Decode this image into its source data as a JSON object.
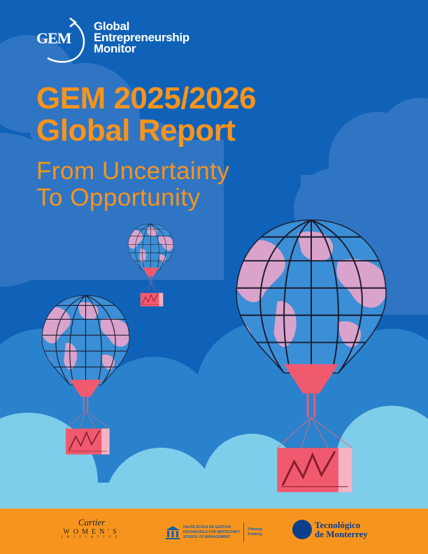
{
  "logo": {
    "mark": "GEM",
    "name_lines": [
      "Global",
      "Entrepreneurship",
      "Monitor"
    ]
  },
  "title": {
    "line1": "GEM 2025/2026",
    "line2": "Global Report"
  },
  "subtitle": {
    "line1": "From Uncertainty",
    "line2": "To Opportunity"
  },
  "colors": {
    "background": "#1062b8",
    "title": "#f7941d",
    "footer": "#f7941d",
    "balloon_ocean": "#3b8fd6",
    "balloon_land": "#d9a3cc",
    "basket": "#ef5a6e"
  },
  "footer": {
    "partners": [
      {
        "lines": [
          "Cartier",
          "WOMEN'S",
          "INITIATIVE"
        ]
      },
      {
        "lines": [
          "HAUTE ÉCOLE DE GESTION",
          "HOCHSCHULE FÜR WIRTSCHAFT",
          "SCHOOL OF MANAGEMENT"
        ],
        "side": [
          "Fribourg",
          "Freiburg"
        ],
        "icon": "building-columns-icon"
      },
      {
        "lines": [
          "Tecnológico",
          "de Monterrey"
        ],
        "icon": "seal-icon"
      }
    ]
  }
}
